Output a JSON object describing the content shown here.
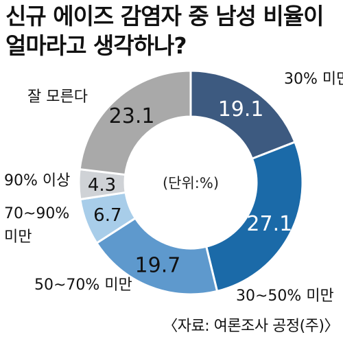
{
  "title_line1": "신규 에이즈 감염자 중 남성 비율이",
  "title_line2": "얼마라고 생각하나?",
  "source": "〈자료: 여론조사 공정(주)〉",
  "chart_data": {
    "type": "donut",
    "title": "신규 에이즈 감염자 중 남성 비율이 얼마라고 생각하나?",
    "center_label": "(단위:%)",
    "categories": [
      "30% 미만",
      "30~50% 미만",
      "50~70% 미만",
      "70~90% 미만",
      "90% 이상",
      "잘 모른다"
    ],
    "values": [
      19.1,
      27.1,
      19.7,
      6.7,
      4.3,
      23.1
    ],
    "colors": [
      "#3d5a80",
      "#1b6aa8",
      "#5e99cd",
      "#a8cde9",
      "#cfd2d6",
      "#a9a9a9"
    ],
    "value_text_colors": [
      "#ffffff",
      "#ffffff",
      "#111111",
      "#111111",
      "#111111",
      "#111111"
    ],
    "legend_placement": "outside labels beside slices"
  }
}
